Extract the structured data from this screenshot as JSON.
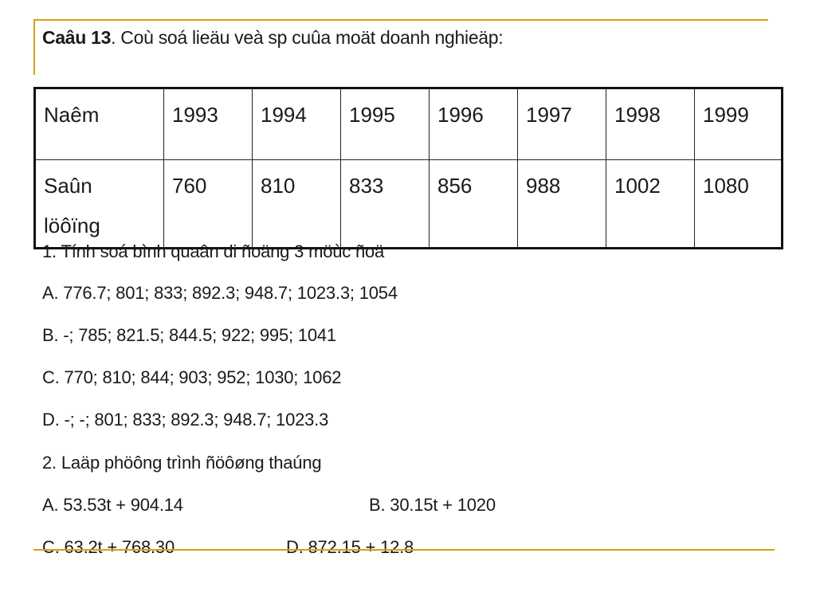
{
  "title": {
    "bold": "Caâu 13",
    "rest": ". Coù soá lieäu veà sp cuûa moät doanh nghieäp:"
  },
  "table": {
    "header_label": "Naêm",
    "years": [
      "1993",
      "1994",
      "1995",
      "1996",
      "1997",
      "1998",
      "1999"
    ],
    "row_label_line1": "Saûn",
    "row_label_line2": "löôïng",
    "values": [
      "760",
      "810",
      "833",
      "856",
      "988",
      "1002",
      "1080"
    ]
  },
  "question1": {
    "prompt": "1. Tính soá bình quaân di ñoäng 3 möùc ñoä",
    "option_a": "A. 776.7; 801; 833; 892.3; 948.7; 1023.3; 1054",
    "option_b": "B. -; 785; 821.5; 844.5; 922; 995; 1041",
    "option_c": "C. 770; 810; 844; 903; 952; 1030; 1062",
    "option_d": "D. -; -; 801; 833; 892.3; 948.7; 1023.3"
  },
  "question2": {
    "prompt": "2. Laäp phöông trình ñöôøng thaúng",
    "option_a": "A. 53.53t + 904.14",
    "option_b": "B. 30.15t + 1020",
    "option_c": "C. 63.2t + 768.30",
    "option_d": "D. 872.15 + 12.8"
  },
  "colors": {
    "accent_rule": "#d4a017",
    "text": "#1a1a1a"
  }
}
